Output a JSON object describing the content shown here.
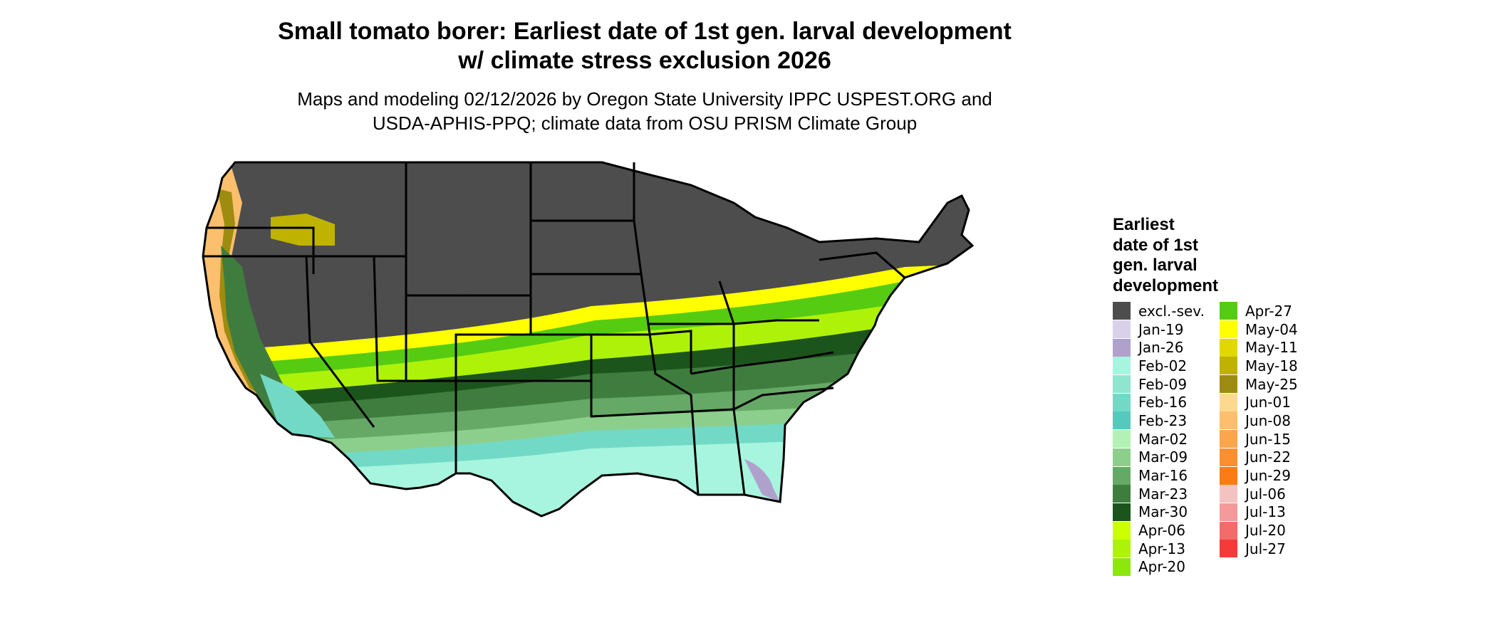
{
  "title": {
    "line1": "Small tomato borer: Earliest date of 1st gen. larval development",
    "line2": "w/ climate stress exclusion 2026"
  },
  "subtitle": {
    "line1": "Maps and modeling 02/12/2026 by Oregon State University IPPC USPEST.ORG and",
    "line2": "USDA-APHIS-PPQ; climate data from OSU PRISM Climate Group"
  },
  "legend": {
    "title_lines": [
      "Earliest",
      "date of 1st",
      "gen. larval",
      "development"
    ],
    "column1": [
      {
        "label": "excl.-sev.",
        "color": "#4d4d4d"
      },
      {
        "label": "Jan-19",
        "color": "#d9d1ea"
      },
      {
        "label": "Jan-26",
        "color": "#b0a1cc"
      },
      {
        "label": "Feb-02",
        "color": "#a7f5de"
      },
      {
        "label": "Feb-09",
        "color": "#8ee6cf"
      },
      {
        "label": "Feb-16",
        "color": "#72d9c6"
      },
      {
        "label": "Feb-23",
        "color": "#55c9bb"
      },
      {
        "label": "Mar-02",
        "color": "#b4f1b4"
      },
      {
        "label": "Mar-09",
        "color": "#8ccf8c"
      },
      {
        "label": "Mar-16",
        "color": "#66a866"
      },
      {
        "label": "Mar-23",
        "color": "#3e7d3e"
      },
      {
        "label": "Mar-30",
        "color": "#1c551c"
      },
      {
        "label": "Apr-06",
        "color": "#ccff00"
      },
      {
        "label": "Apr-13",
        "color": "#aef20a"
      },
      {
        "label": "Apr-20",
        "color": "#8ee60f"
      }
    ],
    "column2": [
      {
        "label": "Apr-27",
        "color": "#55cc11"
      },
      {
        "label": "May-04",
        "color": "#ffff00"
      },
      {
        "label": "May-11",
        "color": "#e0d800"
      },
      {
        "label": "May-18",
        "color": "#bfb300"
      },
      {
        "label": "May-25",
        "color": "#9e8c10"
      },
      {
        "label": "Jun-01",
        "color": "#fcd98f"
      },
      {
        "label": "Jun-08",
        "color": "#fcbf6e"
      },
      {
        "label": "Jun-15",
        "color": "#fca64c"
      },
      {
        "label": "Jun-22",
        "color": "#fc8f2e"
      },
      {
        "label": "Jun-29",
        "color": "#fc7b12"
      },
      {
        "label": "Jul-06",
        "color": "#f5c2c2"
      },
      {
        "label": "Jul-13",
        "color": "#f59a9a"
      },
      {
        "label": "Jul-20",
        "color": "#f56b6b"
      },
      {
        "label": "Jul-27",
        "color": "#f53a3a"
      }
    ]
  }
}
